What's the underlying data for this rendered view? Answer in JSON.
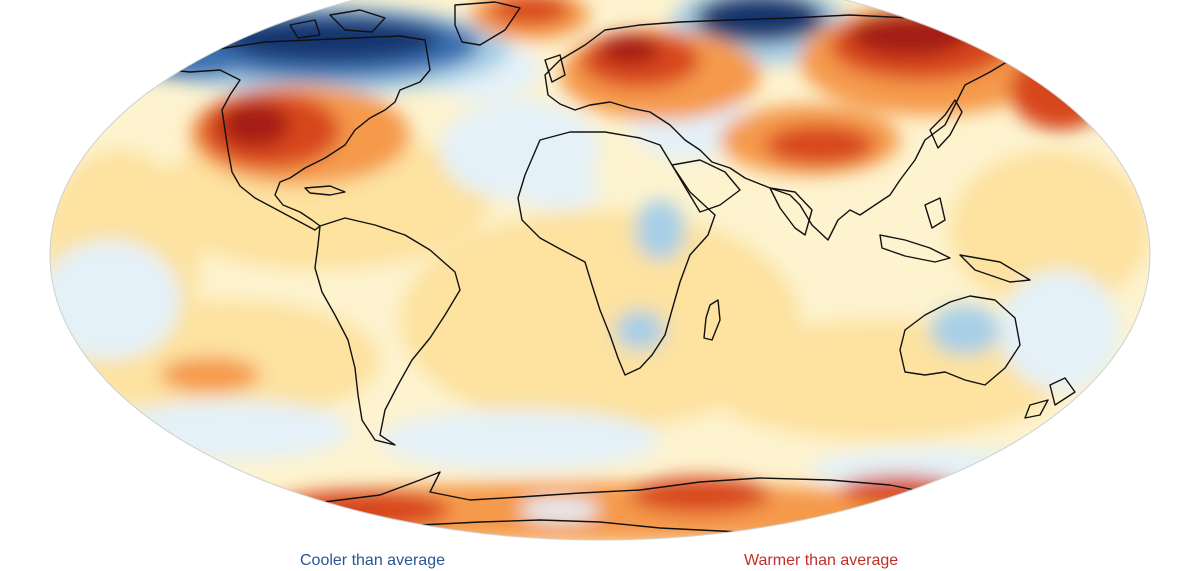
{
  "legend": {
    "cool_label": "Cooler than average",
    "warm_label": "Warmer than average"
  },
  "colors": {
    "ocean_base": "#fdf3cf",
    "cool_light": "#e4f1f8",
    "cool_mid": "#a8cfe6",
    "cool_deep": "#3a6fb0",
    "cool_darkest": "#13366e",
    "warm_light": "#fde2a0",
    "warm_mid": "#f59a4c",
    "warm_deep": "#d8471f",
    "warm_darkest": "#a51b14",
    "coast": "#111111",
    "cool_text": "#2a5593",
    "warm_text": "#c0302a"
  }
}
